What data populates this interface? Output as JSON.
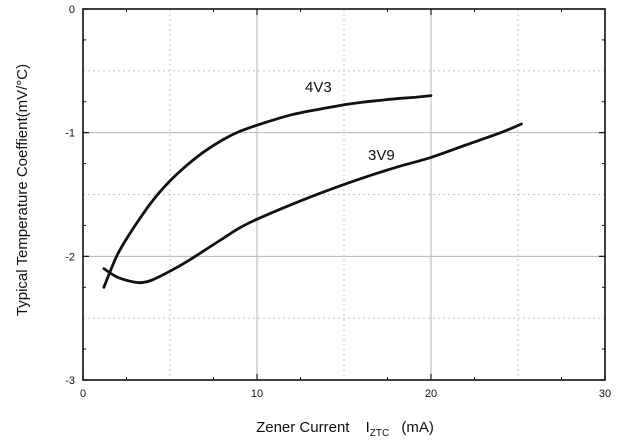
{
  "chart_data": {
    "type": "line",
    "xlabel": "Zener Current",
    "xlabel_symbol": "I",
    "xlabel_subscript": "ZTC",
    "xlabel_unit": "(mA)",
    "ylabel": "Typical Temperature Coeffient(mV/°C)",
    "xlim": [
      0,
      30
    ],
    "ylim": [
      -3,
      0
    ],
    "x_ticks": [
      "0",
      "10",
      "20",
      "30"
    ],
    "y_ticks": [
      "0",
      "-1",
      "-2",
      "-3"
    ],
    "grid": true,
    "series": [
      {
        "name": "4V3",
        "x": [
          1.2,
          2,
          3,
          4,
          5,
          6,
          7,
          8,
          9,
          10,
          11,
          12,
          13,
          14,
          15,
          16,
          17,
          18,
          19,
          20
        ],
        "y": [
          -2.25,
          -1.98,
          -1.75,
          -1.55,
          -1.39,
          -1.26,
          -1.15,
          -1.06,
          -0.99,
          -0.94,
          -0.895,
          -0.855,
          -0.825,
          -0.8,
          -0.775,
          -0.755,
          -0.74,
          -0.725,
          -0.715,
          -0.7
        ]
      },
      {
        "name": "3V9",
        "x": [
          1.2,
          2,
          3,
          3.5,
          4,
          5,
          6,
          7,
          8,
          9,
          10,
          12,
          14,
          16,
          18,
          20,
          22,
          24,
          25.2
        ],
        "y": [
          -2.1,
          -2.17,
          -2.21,
          -2.21,
          -2.19,
          -2.12,
          -2.04,
          -1.95,
          -1.86,
          -1.77,
          -1.7,
          -1.58,
          -1.47,
          -1.37,
          -1.28,
          -1.2,
          -1.1,
          -1.0,
          -0.93
        ]
      }
    ]
  }
}
